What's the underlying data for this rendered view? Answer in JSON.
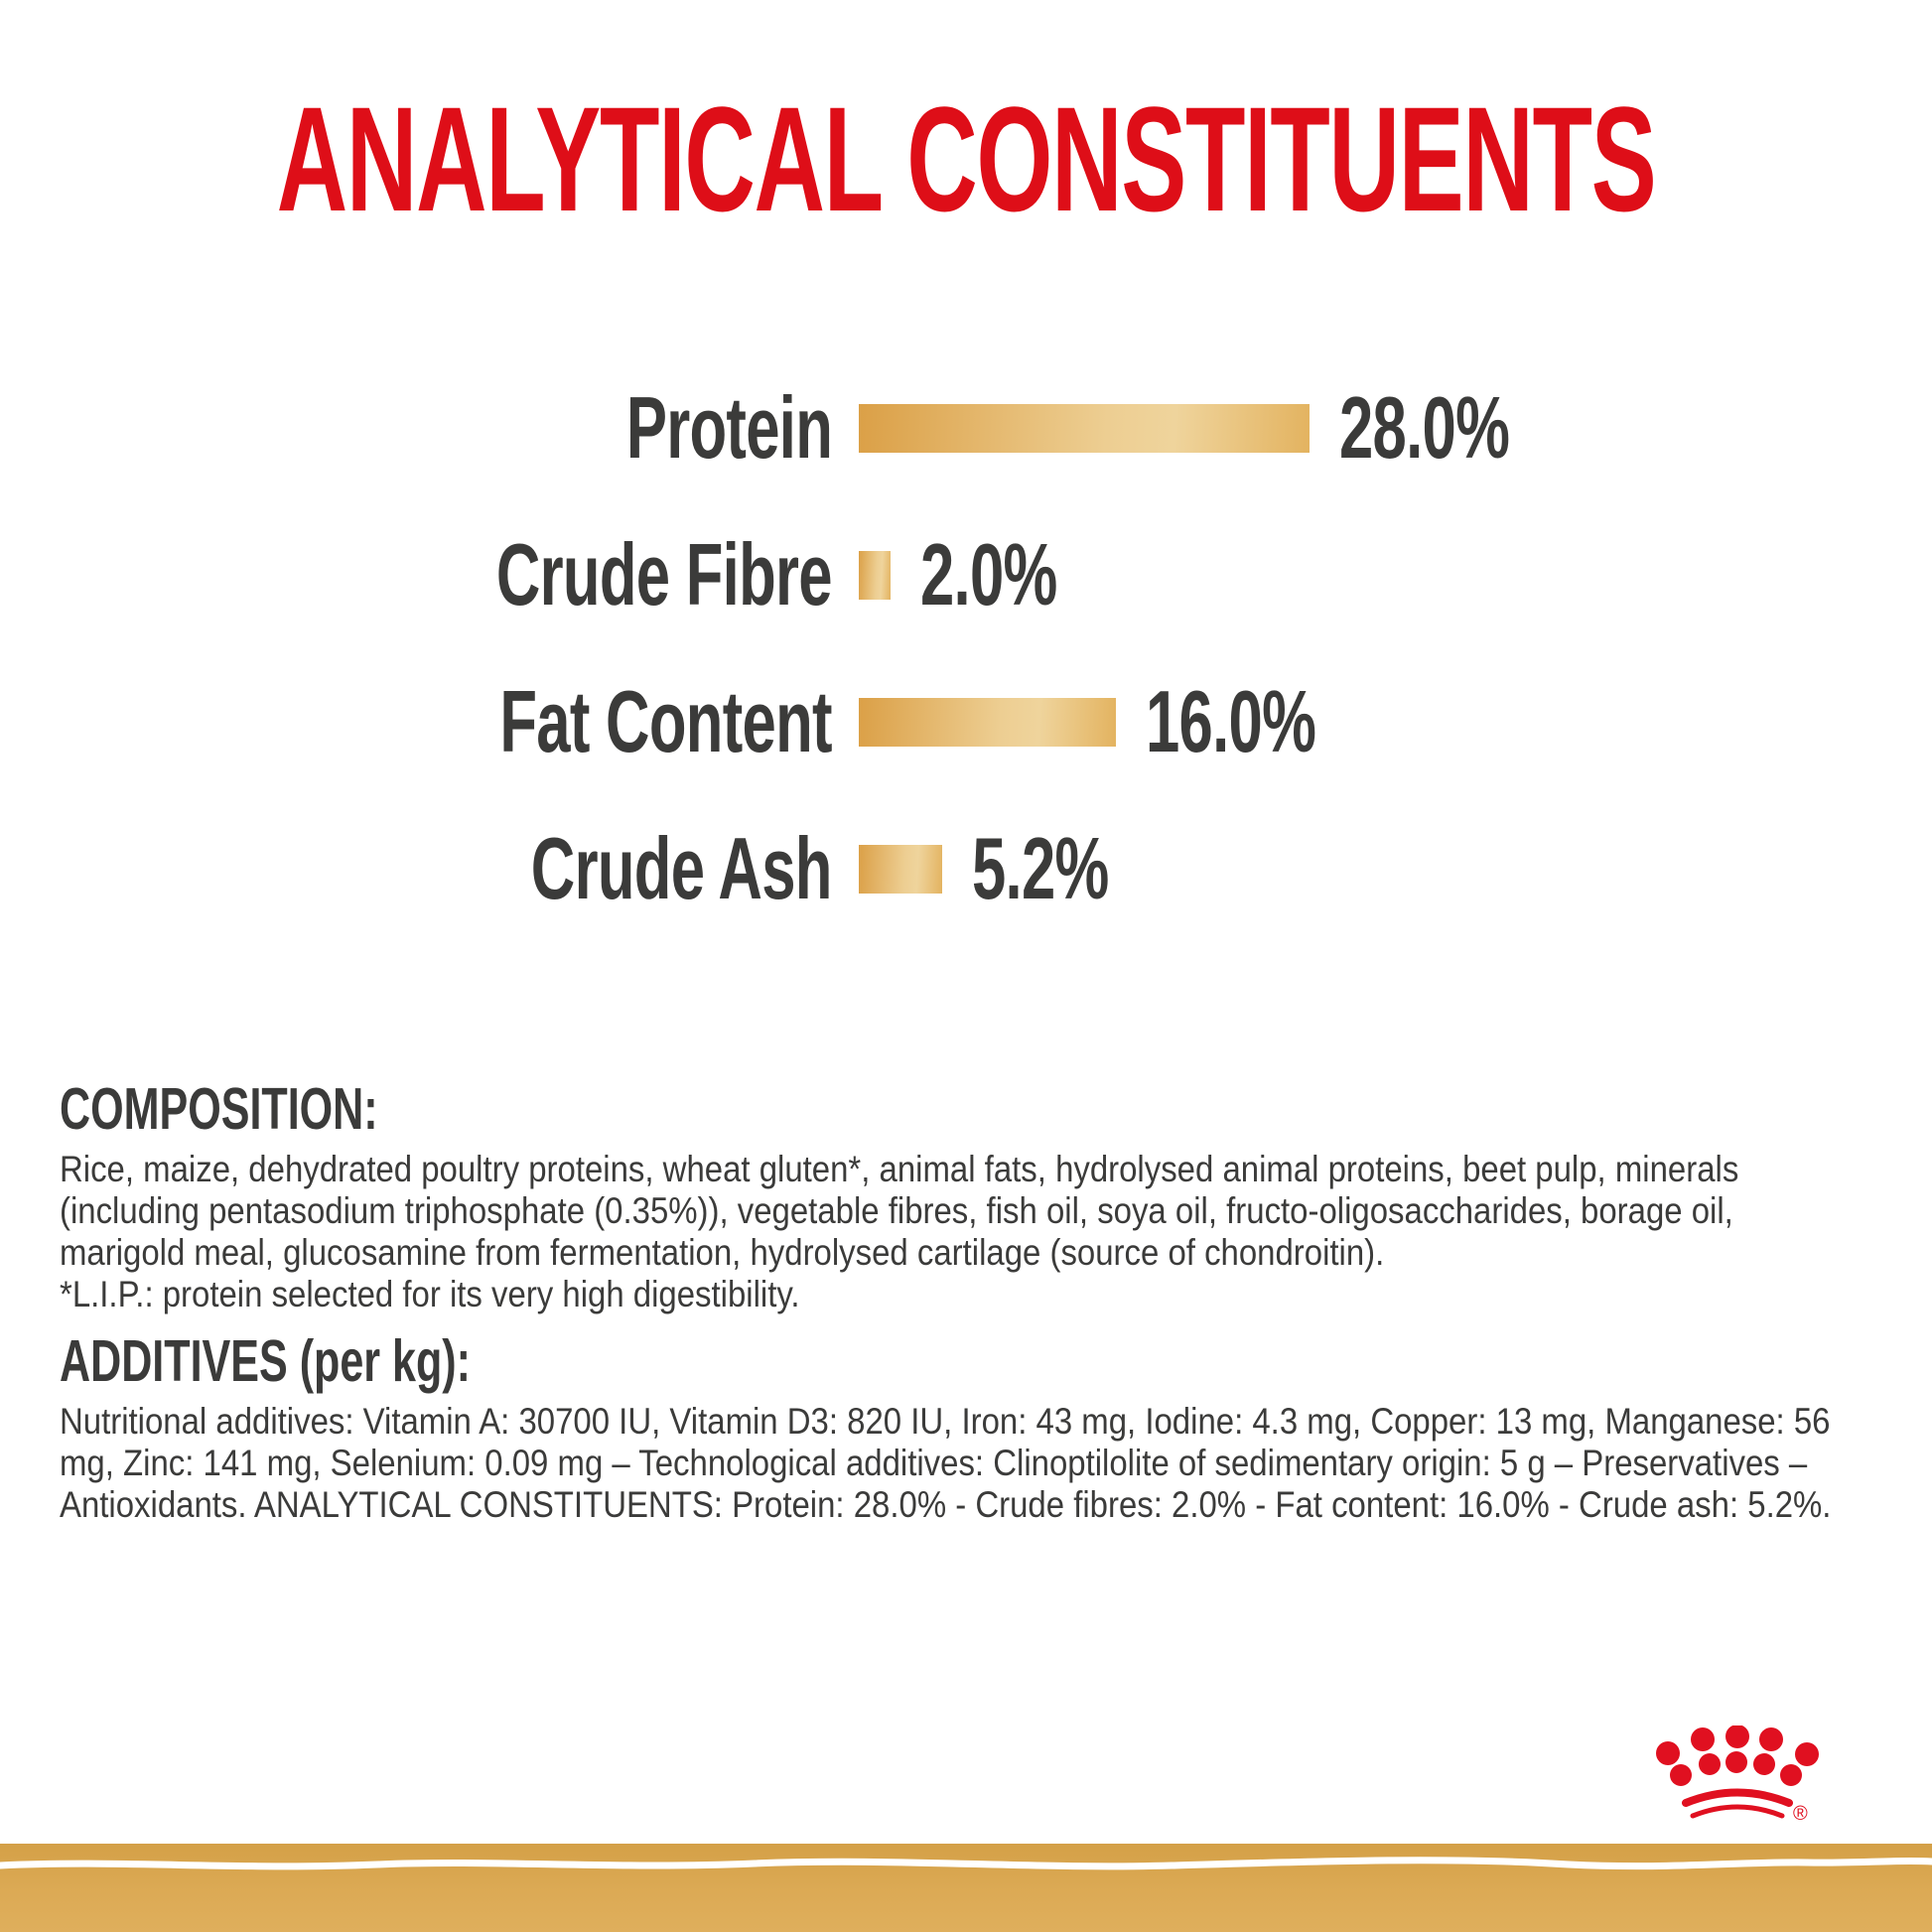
{
  "title": {
    "text": "ANALYTICAL CONSTITUENTS"
  },
  "chart_data": {
    "type": "bar",
    "orientation": "horizontal",
    "title": "ANALYTICAL CONSTITUENTS",
    "categories": [
      "Protein",
      "Crude Fibre",
      "Fat Content",
      "Crude Ash"
    ],
    "values": [
      28.0,
      2.0,
      16.0,
      5.2
    ],
    "value_labels": [
      "28.0%",
      "2.0%",
      "16.0%",
      "5.2%"
    ],
    "unit": "%",
    "xlim": [
      0,
      30
    ],
    "grid": false,
    "legend": false,
    "bar_gradient": [
      "#DBA047",
      "#EDCE92",
      "#E3B360"
    ],
    "label_color": "#3B3B3A"
  },
  "composition": {
    "heading": "COMPOSITION:",
    "lines": [
      "Rice, maize, dehydrated poultry proteins, wheat gluten*, animal fats, hydrolysed animal proteins, beet pulp, minerals",
      "(including pentasodium triphosphate (0.35%)), vegetable fibres, fish oil, soya oil, fructo-oligosaccharides, borage oil,",
      "marigold meal, glucosamine from fermentation, hydrolysed cartilage (source of chondroitin).",
      "*L.I.P.: protein selected for its very high digestibility."
    ]
  },
  "additives": {
    "heading": "ADDITIVES (per kg):",
    "lines": [
      "Nutritional additives: Vitamin A: 30700 IU, Vitamin D3: 820 IU, Iron: 43 mg, Iodine: 4.3 mg, Copper: 13 mg, Manganese: 56",
      "mg, Zinc: 141 mg, Selenium: 0.09 mg – Technological additives: Clinoptilolite of sedimentary origin: 5 g – Preservatives –",
      "Antioxidants. ANALYTICAL CONSTITUENTS: Protein: 28.0% - Crude fibres: 2.0% - Fat content: 16.0% - Crude ash: 5.2%."
    ]
  },
  "branding": {
    "logo": "royal-canin-crown",
    "registered_mark": "®"
  },
  "colors": {
    "title_red": "#DE0E18",
    "logo_red": "#E01020",
    "text_dark": "#3B3B3A",
    "band_gold": "#DCAA55",
    "brush_white": "#FFFFFF"
  }
}
